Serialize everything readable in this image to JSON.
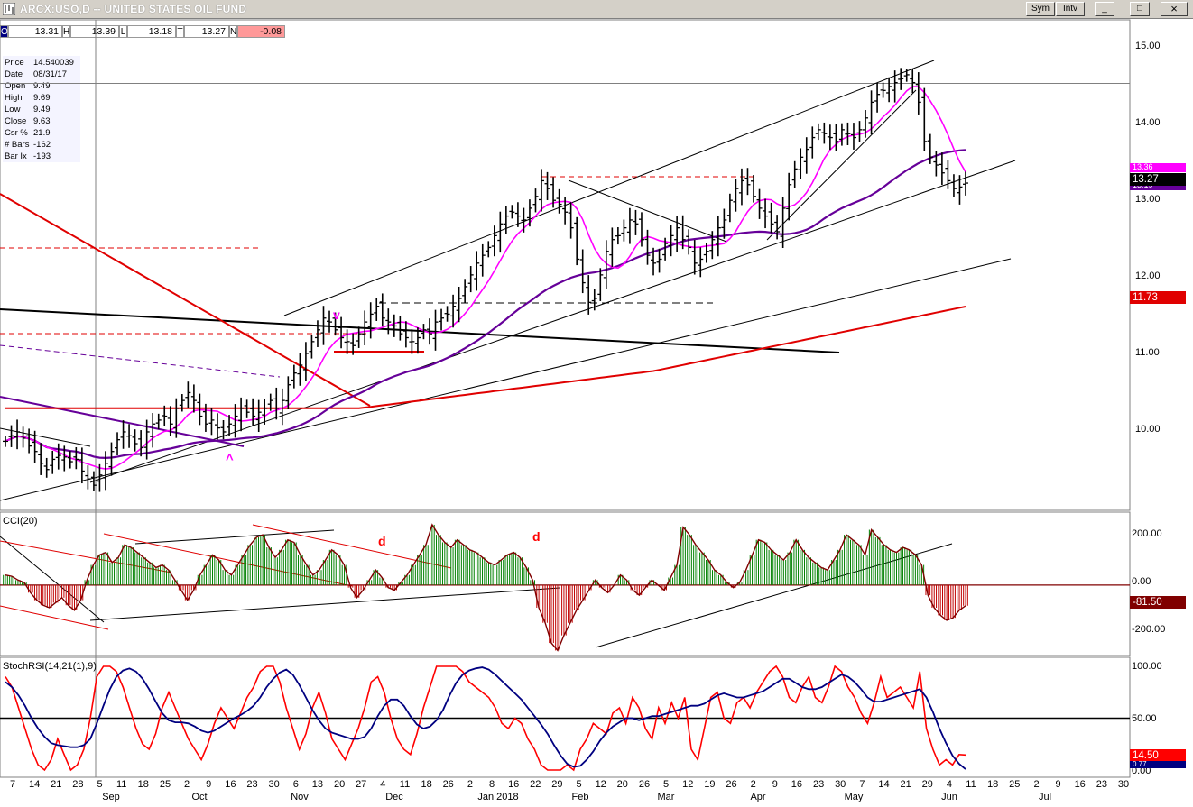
{
  "window": {
    "title": "ARCX:USO,D -- UNITED STATES OIL FUND",
    "sym_button": "Sym",
    "intv_button": "Intv",
    "minimize_glyph": "_",
    "maximize_glyph": "□",
    "close_glyph": "×"
  },
  "ohlc_bar": {
    "open_label": "O",
    "open": "13.31",
    "high_label": "H",
    "high": "13.39",
    "low_label": "L",
    "low": "13.18",
    "last_label": "T",
    "last": "13.27",
    "net_label": "N",
    "net": "-0.08"
  },
  "data_window": {
    "rows": [
      {
        "label": "Price",
        "value": "14.540039"
      },
      {
        "label": "Date",
        "value": "08/31/17"
      },
      {
        "label": "Open",
        "value": "9.49"
      },
      {
        "label": "High",
        "value": "9.69"
      },
      {
        "label": "Low",
        "value": "9.49"
      },
      {
        "label": "Close",
        "value": "9.63"
      },
      {
        "label": "Csr %",
        "value": "21.9"
      },
      {
        "label": "# Bars",
        "value": "-162"
      },
      {
        "label": "Bar Ix",
        "value": "-193"
      }
    ]
  },
  "price_tags": {
    "last": "13.27",
    "ma_short": "13.36",
    "ma_mid": "13.19",
    "ma_long": "11.73",
    "cci": "-81.50",
    "stochrsi": "14.50",
    "stoch_signal": "0.77"
  },
  "colors": {
    "ma_short": "#ff00ff",
    "ma_mid": "#660099",
    "ma_long": "#e00000",
    "cci_pos": "#008000",
    "cci_neg": "#c00000",
    "cci_line": "#800000",
    "stoch_fast": "#ff0000",
    "stoch_slow": "#000080",
    "annotation": "#ff0000",
    "annotation_magenta": "#ff00ff"
  },
  "annotations": {
    "v_mark": "v",
    "caret_mark": "^",
    "d_mark_1": "d",
    "d_mark_2": "d"
  },
  "chart_data": [
    {
      "type": "ohlc",
      "title": "ARCX:USO,D -- UNITED STATES OIL FUND",
      "ylim": [
        9.1,
        15.35
      ],
      "y_ticks": [
        "15.00",
        "14.00",
        "13.00",
        "12.00",
        "11.00",
        "10.00"
      ],
      "x_day_ticks": [
        "7",
        "14",
        "21",
        "28",
        "5",
        "11",
        "18",
        "25",
        "2",
        "9",
        "16",
        "23",
        "30",
        "6",
        "13",
        "20",
        "27",
        "4",
        "11",
        "18",
        "26",
        "2",
        "8",
        "16",
        "22",
        "29",
        "5",
        "12",
        "20",
        "26",
        "5",
        "12",
        "19",
        "26",
        "2",
        "9",
        "16",
        "23",
        "30",
        "7",
        "14",
        "21",
        "29",
        "4",
        "11",
        "18",
        "25",
        "2",
        "9",
        "16",
        "23",
        "30"
      ],
      "x_month_ticks": [
        "Sep",
        "Oct",
        "Nov",
        "Dec",
        "Jan 2018",
        "Feb",
        "Mar",
        "Apr",
        "May",
        "Jun",
        "Jul"
      ],
      "close_series": [
        9.98,
        10.05,
        10.1,
        10.02,
        9.92,
        9.85,
        9.7,
        9.62,
        9.75,
        9.8,
        9.78,
        9.72,
        9.75,
        9.6,
        9.5,
        9.42,
        9.55,
        9.7,
        9.85,
        10.0,
        10.1,
        10.05,
        9.95,
        9.9,
        10.1,
        10.2,
        10.25,
        10.3,
        10.2,
        10.4,
        10.5,
        10.6,
        10.5,
        10.3,
        10.2,
        10.25,
        10.15,
        10.1,
        10.2,
        10.3,
        10.4,
        10.35,
        10.3,
        10.35,
        10.4,
        10.5,
        10.4,
        10.5,
        10.7,
        10.85,
        10.95,
        11.1,
        11.25,
        11.4,
        11.55,
        11.5,
        11.4,
        11.3,
        11.25,
        11.2,
        11.35,
        11.5,
        11.6,
        11.7,
        11.55,
        11.5,
        11.45,
        11.35,
        11.3,
        11.25,
        11.3,
        11.4,
        11.35,
        11.5,
        11.55,
        11.6,
        11.7,
        11.8,
        11.95,
        12.1,
        12.25,
        12.35,
        12.45,
        12.6,
        12.75,
        12.85,
        12.9,
        12.85,
        12.8,
        12.95,
        13.1,
        13.3,
        13.2,
        13.05,
        13.0,
        12.9,
        12.7,
        12.3,
        12.0,
        11.75,
        11.8,
        12.1,
        12.4,
        12.55,
        12.6,
        12.7,
        12.8,
        12.75,
        12.55,
        12.35,
        12.25,
        12.3,
        12.5,
        12.6,
        12.7,
        12.55,
        12.45,
        12.25,
        12.3,
        12.4,
        12.55,
        12.7,
        12.8,
        13.05,
        13.2,
        13.3,
        13.25,
        13.1,
        12.95,
        12.85,
        12.75,
        12.65,
        12.95,
        13.25,
        13.45,
        13.6,
        13.7,
        13.85,
        13.95,
        13.9,
        13.85,
        13.8,
        13.95,
        13.9,
        13.85,
        13.95,
        14.1,
        14.3,
        14.4,
        14.45,
        14.5,
        14.55,
        14.6,
        14.65,
        14.55,
        14.3,
        13.8,
        13.6,
        13.5,
        13.4,
        13.3,
        13.2,
        13.22,
        13.27
      ],
      "ma_short_label": "13.36",
      "ma_mid_label": "13.19",
      "ma_long_label": "11.73"
    },
    {
      "type": "bar",
      "title": "CCI(20)",
      "ylim": [
        -280,
        290
      ],
      "y_ticks": [
        "200.00",
        "0.00",
        "-200.00"
      ],
      "last_value": -81.5,
      "values": [
        40,
        35,
        20,
        10,
        -30,
        -60,
        -80,
        -90,
        -70,
        -50,
        -80,
        -100,
        -60,
        20,
        80,
        120,
        130,
        90,
        110,
        160,
        150,
        130,
        110,
        90,
        70,
        80,
        60,
        20,
        -20,
        -60,
        -20,
        40,
        80,
        120,
        100,
        60,
        40,
        80,
        120,
        160,
        190,
        200,
        150,
        110,
        140,
        180,
        170,
        120,
        80,
        40,
        60,
        100,
        140,
        120,
        80,
        -10,
        -50,
        -20,
        20,
        60,
        30,
        -10,
        -20,
        10,
        40,
        80,
        120,
        160,
        240,
        200,
        170,
        150,
        180,
        160,
        140,
        130,
        110,
        90,
        80,
        100,
        120,
        130,
        110,
        70,
        20,
        -90,
        -150,
        -230,
        -260,
        -200,
        -150,
        -100,
        -60,
        -20,
        20,
        -10,
        -30,
        0,
        40,
        20,
        -20,
        -40,
        -10,
        20,
        0,
        -20,
        30,
        80,
        230,
        200,
        160,
        130,
        100,
        60,
        40,
        10,
        -10,
        10,
        60,
        120,
        180,
        170,
        140,
        120,
        100,
        130,
        180,
        140,
        110,
        90,
        70,
        60,
        100,
        140,
        200,
        180,
        160,
        120,
        220,
        190,
        160,
        140,
        130,
        150,
        140,
        120,
        80,
        -40,
        -90,
        -120,
        -140,
        -130,
        -100,
        -82
      ],
      "zero_line": 0
    },
    {
      "type": "line",
      "title": "StochRSI(14,21(1),9)",
      "ylim": [
        0,
        100
      ],
      "y_ticks": [
        "100.00",
        "50.00",
        "0.00"
      ],
      "series": [
        {
          "name": "StochRSI",
          "values": [
            90,
            80,
            60,
            40,
            20,
            5,
            0,
            10,
            30,
            15,
            0,
            5,
            20,
            50,
            90,
            100,
            100,
            95,
            80,
            60,
            40,
            25,
            20,
            35,
            60,
            75,
            60,
            45,
            30,
            20,
            10,
            25,
            45,
            60,
            50,
            40,
            55,
            70,
            80,
            95,
            100,
            100,
            85,
            60,
            40,
            20,
            35,
            60,
            75,
            55,
            30,
            20,
            10,
            25,
            40,
            60,
            85,
            90,
            75,
            50,
            30,
            20,
            15,
            35,
            60,
            80,
            100,
            100,
            100,
            100,
            95,
            85,
            80,
            75,
            70,
            60,
            45,
            40,
            50,
            45,
            30,
            20,
            5,
            0,
            0,
            0,
            5,
            0,
            20,
            30,
            45,
            40,
            35,
            55,
            60,
            45,
            70,
            60,
            40,
            30,
            60,
            45,
            65,
            50,
            70,
            20,
            10,
            40,
            70,
            75,
            50,
            45,
            65,
            70,
            60,
            75,
            85,
            95,
            100,
            90,
            70,
            65,
            80,
            90,
            70,
            65,
            80,
            100,
            95,
            80,
            70,
            55,
            45,
            65,
            90,
            70,
            75,
            80,
            70,
            60,
            95,
            40,
            20,
            5,
            10,
            5,
            15,
            14.5
          ]
        },
        {
          "name": "Signal",
          "values": [
            85,
            80,
            72,
            62,
            50,
            40,
            32,
            26,
            24,
            23,
            22,
            22,
            24,
            30,
            45,
            62,
            78,
            90,
            96,
            98,
            95,
            88,
            78,
            66,
            55,
            48,
            46,
            46,
            45,
            42,
            38,
            36,
            38,
            42,
            46,
            50,
            53,
            57,
            62,
            70,
            80,
            88,
            94,
            97,
            92,
            82,
            70,
            58,
            48,
            40,
            36,
            34,
            32,
            30,
            30,
            32,
            40,
            52,
            62,
            68,
            68,
            62,
            52,
            44,
            40,
            42,
            48,
            58,
            72,
            84,
            92,
            96,
            98,
            99,
            97,
            92,
            86,
            80,
            74,
            68,
            60,
            52,
            44,
            35,
            24,
            14,
            6,
            3,
            4,
            10,
            18,
            28,
            36,
            42,
            46,
            50,
            50,
            48,
            50,
            52,
            52,
            54,
            56,
            58,
            60,
            62,
            62,
            64,
            68,
            72,
            74,
            72,
            70,
            70,
            72,
            74,
            76,
            80,
            84,
            88,
            88,
            84,
            80,
            78,
            78,
            80,
            84,
            88,
            92,
            90,
            85,
            78,
            70,
            66,
            66,
            68,
            70,
            72,
            74,
            76,
            78,
            70,
            56,
            40,
            26,
            14,
            6,
            0.77
          ]
        }
      ],
      "reference_line": 50
    }
  ]
}
